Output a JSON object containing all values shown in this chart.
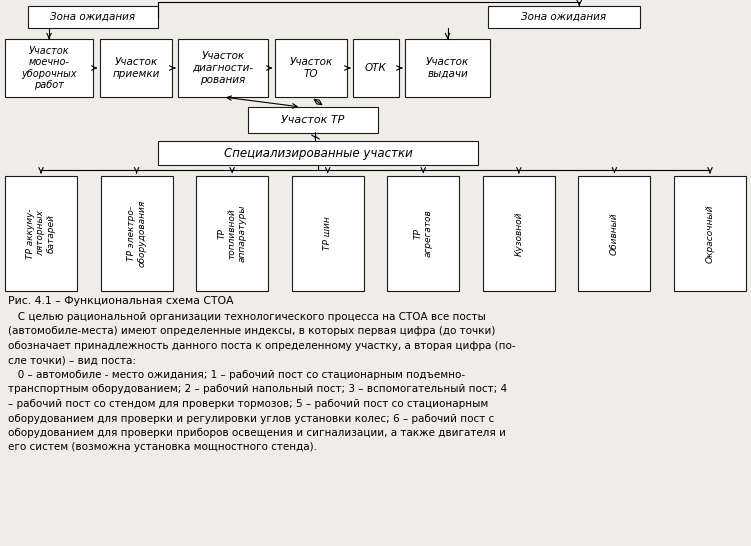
{
  "bg_color": "#f0ede8",
  "box_color": "#ffffff",
  "border_color": "#1a1a1a",
  "text_color": "#000000",
  "fig_caption": "Рис. 4.1 – Функциональная схема СТОА",
  "body_lines": [
    "   С целью рациональной организации технологического процесса на СТОА все посты",
    "(автомобиле-места) имеют определенные индексы, в которых первая цифра (до точки)",
    "обозначает принадлежность данного поста к определенному участку, а вторая цифра (по-",
    "сле точки) – вид поста:",
    "   0 – автомобиле - место ожидания; 1 – рабочий пост со стационарным подъемно-",
    "транспортным оборудованием; 2 – рабочий напольный пост; 3 – вспомогательный пост; 4",
    "– рабочий пост со стендом для проверки тормозов; 5 – рабочий пост со стационарным",
    "оборудованием для проверки и регулировки углов установки колес; 6 – рабочий пост с",
    "оборудованием для проверки приборов освещения и сигнализации, а также двигателя и",
    "его систем (возможна установка мощностного стенда)."
  ],
  "zona1_label": "Зона ожидания",
  "zona2_label": "Зона ожидания",
  "box1_label": "Участок\nмоечно-\nуборочных\nработ",
  "box2_label": "Участок\nприемки",
  "box3_label": "Участок\nдиагности-\nрования",
  "box4_label": "Участок\nТО",
  "box5_label": "ОТК",
  "box6_label": "Участок\nвыдачи",
  "box_tr_label": "Участок ТР",
  "box_spec_label": "Специализированные участки",
  "sub_labels": [
    "ТР аккуму-\nляторных\nбатарей",
    "ТР электро-\nоборудования",
    "ТР\nтопливной\nаппаратуры",
    "ТР шин",
    "ТР\nагрегатов",
    "Кузовной",
    "Обивный",
    "Окрасочный"
  ]
}
